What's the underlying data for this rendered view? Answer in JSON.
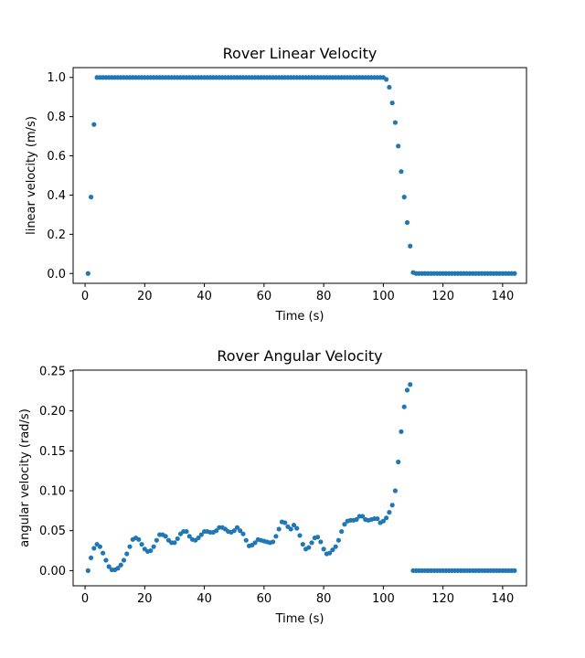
{
  "chart_data": [
    {
      "type": "scatter",
      "title": "Rover Linear Velocity",
      "xlabel": "Time (s)",
      "ylabel": "linear velocity (m/s)",
      "xlim": [
        -4,
        148
      ],
      "ylim": [
        -0.05,
        1.05
      ],
      "xticks": [
        0,
        20,
        40,
        60,
        80,
        100,
        120,
        140
      ],
      "yticks": [
        0.0,
        0.2,
        0.4,
        0.6,
        0.8,
        1.0
      ],
      "ytick_labels": [
        "0.0",
        "0.2",
        "0.4",
        "0.6",
        "0.8",
        "1.0"
      ],
      "grid": false,
      "color": "#1f77b4",
      "x": [
        1,
        2,
        3,
        4,
        5,
        6,
        7,
        8,
        9,
        10,
        11,
        12,
        13,
        14,
        15,
        16,
        17,
        18,
        19,
        20,
        21,
        22,
        23,
        24,
        25,
        26,
        27,
        28,
        29,
        30,
        31,
        32,
        33,
        34,
        35,
        36,
        37,
        38,
        39,
        40,
        41,
        42,
        43,
        44,
        45,
        46,
        47,
        48,
        49,
        50,
        51,
        52,
        53,
        54,
        55,
        56,
        57,
        58,
        59,
        60,
        61,
        62,
        63,
        64,
        65,
        66,
        67,
        68,
        69,
        70,
        71,
        72,
        73,
        74,
        75,
        76,
        77,
        78,
        79,
        80,
        81,
        82,
        83,
        84,
        85,
        86,
        87,
        88,
        89,
        90,
        91,
        92,
        93,
        94,
        95,
        96,
        97,
        98,
        99,
        100,
        101,
        102,
        103,
        104,
        105,
        106,
        107,
        108,
        109,
        110,
        111,
        112,
        113,
        114,
        115,
        116,
        117,
        118,
        119,
        120,
        121,
        122,
        123,
        124,
        125,
        126,
        127,
        128,
        129,
        130,
        131,
        132,
        133,
        134,
        135,
        136,
        137,
        138,
        139,
        140,
        141,
        142,
        143,
        144
      ],
      "y": [
        0.0,
        0.39,
        0.76,
        1,
        1,
        1,
        1,
        1,
        1,
        1,
        1,
        1,
        1,
        1,
        1,
        1,
        1,
        1,
        1,
        1,
        1,
        1,
        1,
        1,
        1,
        1,
        1,
        1,
        1,
        1,
        1,
        1,
        1,
        1,
        1,
        1,
        1,
        1,
        1,
        1,
        1,
        1,
        1,
        1,
        1,
        1,
        1,
        1,
        1,
        1,
        1,
        1,
        1,
        1,
        1,
        1,
        1,
        1,
        1,
        1,
        1,
        1,
        1,
        1,
        1,
        1,
        1,
        1,
        1,
        1,
        1,
        1,
        1,
        1,
        1,
        1,
        1,
        1,
        1,
        1,
        1,
        1,
        1,
        1,
        1,
        1,
        1,
        1,
        1,
        1,
        1,
        1,
        1,
        1,
        1,
        1,
        1,
        1,
        1,
        1,
        0.99,
        0.95,
        0.87,
        0.77,
        0.65,
        0.52,
        0.39,
        0.26,
        0.14,
        0.005,
        0,
        0,
        0,
        0,
        0,
        0,
        0,
        0,
        0,
        0,
        0,
        0,
        0,
        0,
        0,
        0,
        0,
        0,
        0,
        0,
        0,
        0,
        0,
        0,
        0,
        0,
        0,
        0,
        0,
        0,
        0,
        0,
        0,
        0
      ]
    },
    {
      "type": "scatter",
      "title": "Rover Angular Velocity",
      "xlabel": "Time (s)",
      "ylabel": "angular velocity (rad/s)",
      "xlim": [
        -4,
        148
      ],
      "ylim": [
        -0.019,
        0.251
      ],
      "xticks": [
        0,
        20,
        40,
        60,
        80,
        100,
        120,
        140
      ],
      "yticks": [
        0.0,
        0.05,
        0.1,
        0.15,
        0.2,
        0.25
      ],
      "ytick_labels": [
        "0.00",
        "0.05",
        "0.10",
        "0.15",
        "0.20",
        "0.25"
      ],
      "grid": false,
      "color": "#1f77b4",
      "x": [
        1,
        2,
        3,
        4,
        5,
        6,
        7,
        8,
        9,
        10,
        11,
        12,
        13,
        14,
        15,
        16,
        17,
        18,
        19,
        20,
        21,
        22,
        23,
        24,
        25,
        26,
        27,
        28,
        29,
        30,
        31,
        32,
        33,
        34,
        35,
        36,
        37,
        38,
        39,
        40,
        41,
        42,
        43,
        44,
        45,
        46,
        47,
        48,
        49,
        50,
        51,
        52,
        53,
        54,
        55,
        56,
        57,
        58,
        59,
        60,
        61,
        62,
        63,
        64,
        65,
        66,
        67,
        68,
        69,
        70,
        71,
        72,
        73,
        74,
        75,
        76,
        77,
        78,
        79,
        80,
        81,
        82,
        83,
        84,
        85,
        86,
        87,
        88,
        89,
        90,
        91,
        92,
        93,
        94,
        95,
        96,
        97,
        98,
        99,
        100,
        101,
        102,
        103,
        104,
        105,
        106,
        107,
        108,
        109,
        110,
        111,
        112,
        113,
        114,
        115,
        116,
        117,
        118,
        119,
        120,
        121,
        122,
        123,
        124,
        125,
        126,
        127,
        128,
        129,
        130,
        131,
        132,
        133,
        134,
        135,
        136,
        137,
        138,
        139,
        140,
        141,
        142,
        143,
        144
      ],
      "y": [
        0.0,
        0.016,
        0.028,
        0.033,
        0.03,
        0.022,
        0.013,
        0.005,
        0.001,
        0.001,
        0.003,
        0.007,
        0.013,
        0.021,
        0.03,
        0.039,
        0.041,
        0.039,
        0.033,
        0.027,
        0.024,
        0.025,
        0.03,
        0.038,
        0.045,
        0.045,
        0.043,
        0.038,
        0.035,
        0.035,
        0.04,
        0.046,
        0.049,
        0.049,
        0.043,
        0.039,
        0.038,
        0.041,
        0.045,
        0.049,
        0.049,
        0.048,
        0.048,
        0.05,
        0.054,
        0.054,
        0.052,
        0.049,
        0.048,
        0.05,
        0.054,
        0.05,
        0.046,
        0.038,
        0.031,
        0.032,
        0.035,
        0.039,
        0.038,
        0.037,
        0.036,
        0.035,
        0.036,
        0.043,
        0.052,
        0.061,
        0.06,
        0.055,
        0.052,
        0.057,
        0.053,
        0.044,
        0.033,
        0.027,
        0.029,
        0.035,
        0.041,
        0.042,
        0.036,
        0.027,
        0.021,
        0.022,
        0.026,
        0.03,
        0.038,
        0.049,
        0.058,
        0.062,
        0.063,
        0.063,
        0.064,
        0.068,
        0.068,
        0.064,
        0.063,
        0.064,
        0.065,
        0.065,
        0.06,
        0.062,
        0.066,
        0.073,
        0.082,
        0.1,
        0.136,
        0.174,
        0.205,
        0.226,
        0.233,
        0.0,
        0,
        0,
        0,
        0,
        0,
        0,
        0,
        0,
        0,
        0,
        0,
        0,
        0,
        0,
        0,
        0,
        0,
        0,
        0,
        0,
        0,
        0,
        0,
        0,
        0,
        0,
        0,
        0,
        0,
        0,
        0,
        0,
        0,
        0
      ]
    }
  ]
}
